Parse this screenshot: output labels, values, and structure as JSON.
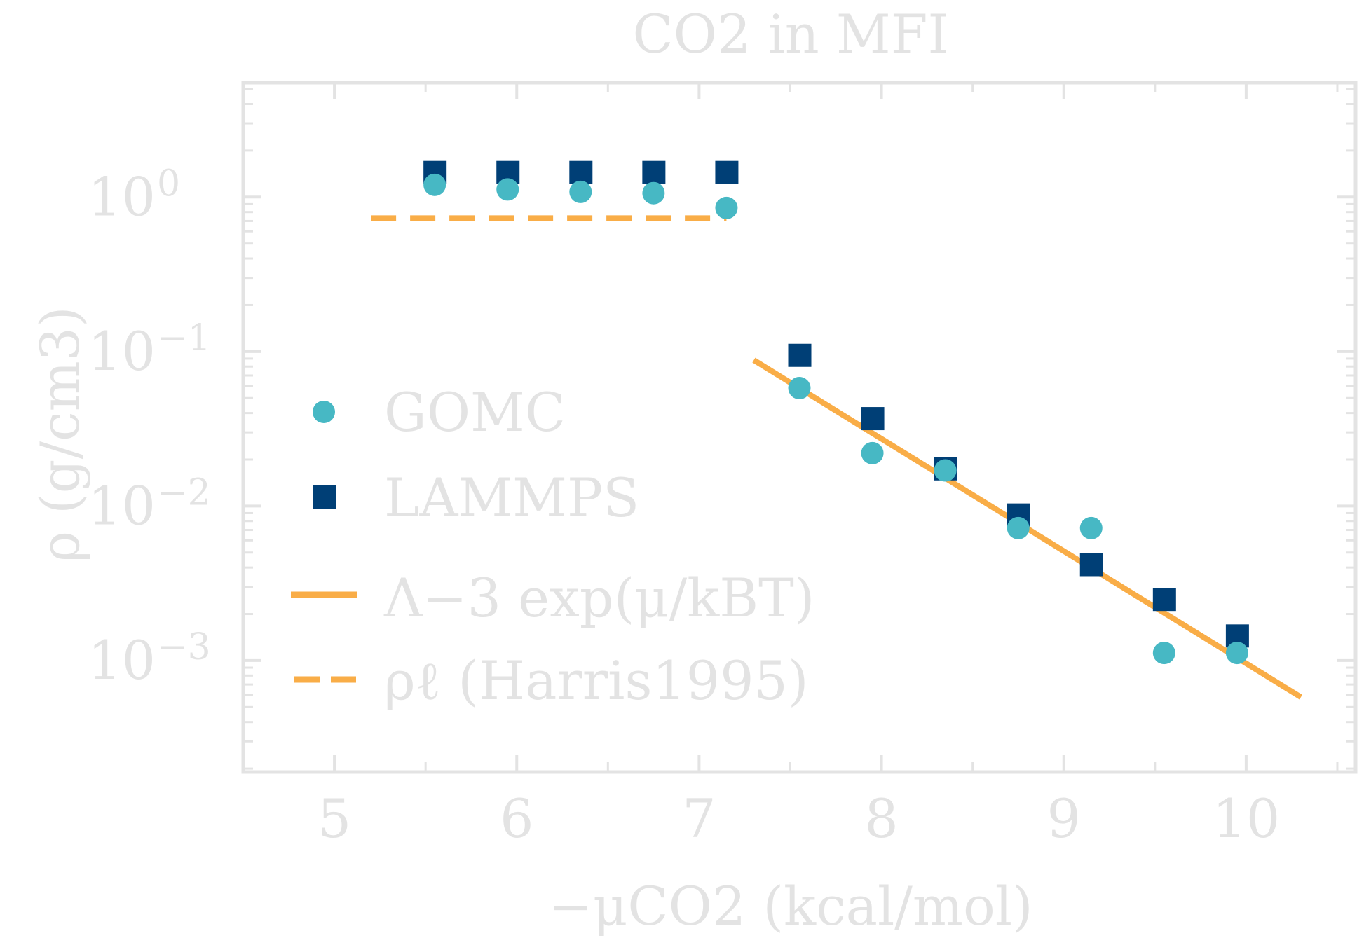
{
  "chart_data": {
    "type": "scatter",
    "title": "CO2 in MFI",
    "xlabel": "−μCO2 (kcal/mol)",
    "ylabel": "ρ (g/cm3)",
    "xscale": "linear",
    "yscale": "log",
    "xlim": [
      4.5,
      10.6
    ],
    "ylim": [
      0.00019,
      5.5
    ],
    "xticks": [
      5,
      6,
      7,
      8,
      9,
      10
    ],
    "xtick_labels": [
      "5",
      "6",
      "7",
      "8",
      "9",
      "10"
    ],
    "yticks": [
      1,
      0.1,
      0.01,
      0.001
    ],
    "ytick_labels": [
      "10",
      "10",
      "10",
      "10"
    ],
    "ytick_exponents": [
      "0",
      "−1",
      "−2",
      "−3"
    ],
    "grid": false,
    "legend_position": "left-center",
    "series": [
      {
        "name": "GOMC",
        "marker": "circle",
        "color": "#47b8c4",
        "x": [
          5.55,
          5.95,
          6.35,
          6.75,
          7.15,
          7.55,
          7.95,
          8.35,
          8.75,
          9.15,
          9.55,
          9.95
        ],
        "y": [
          1.2,
          1.12,
          1.08,
          1.06,
          0.85,
          0.058,
          0.022,
          0.017,
          0.0072,
          0.0072,
          0.00112,
          0.00112
        ]
      },
      {
        "name": "LAMMPS",
        "marker": "square",
        "color": "#003f76",
        "x": [
          5.55,
          5.95,
          6.35,
          6.75,
          7.15,
          7.55,
          7.95,
          8.35,
          8.75,
          9.15,
          9.55,
          9.95
        ],
        "y": [
          1.45,
          1.45,
          1.45,
          1.45,
          1.45,
          0.095,
          0.037,
          0.0175,
          0.0088,
          0.0042,
          0.0025,
          0.00145
        ]
      },
      {
        "name": "Λ−3 exp(μ/kBT)",
        "line": "solid",
        "color": "#f9ad47",
        "x": [
          7.3,
          10.3
        ],
        "y": [
          0.088,
          0.00058
        ]
      },
      {
        "name": "ρℓ (Harris1995)",
        "line": "dashed",
        "color": "#f9ad47",
        "x": [
          5.2,
          7.15
        ],
        "y": [
          0.73,
          0.73
        ]
      }
    ]
  }
}
